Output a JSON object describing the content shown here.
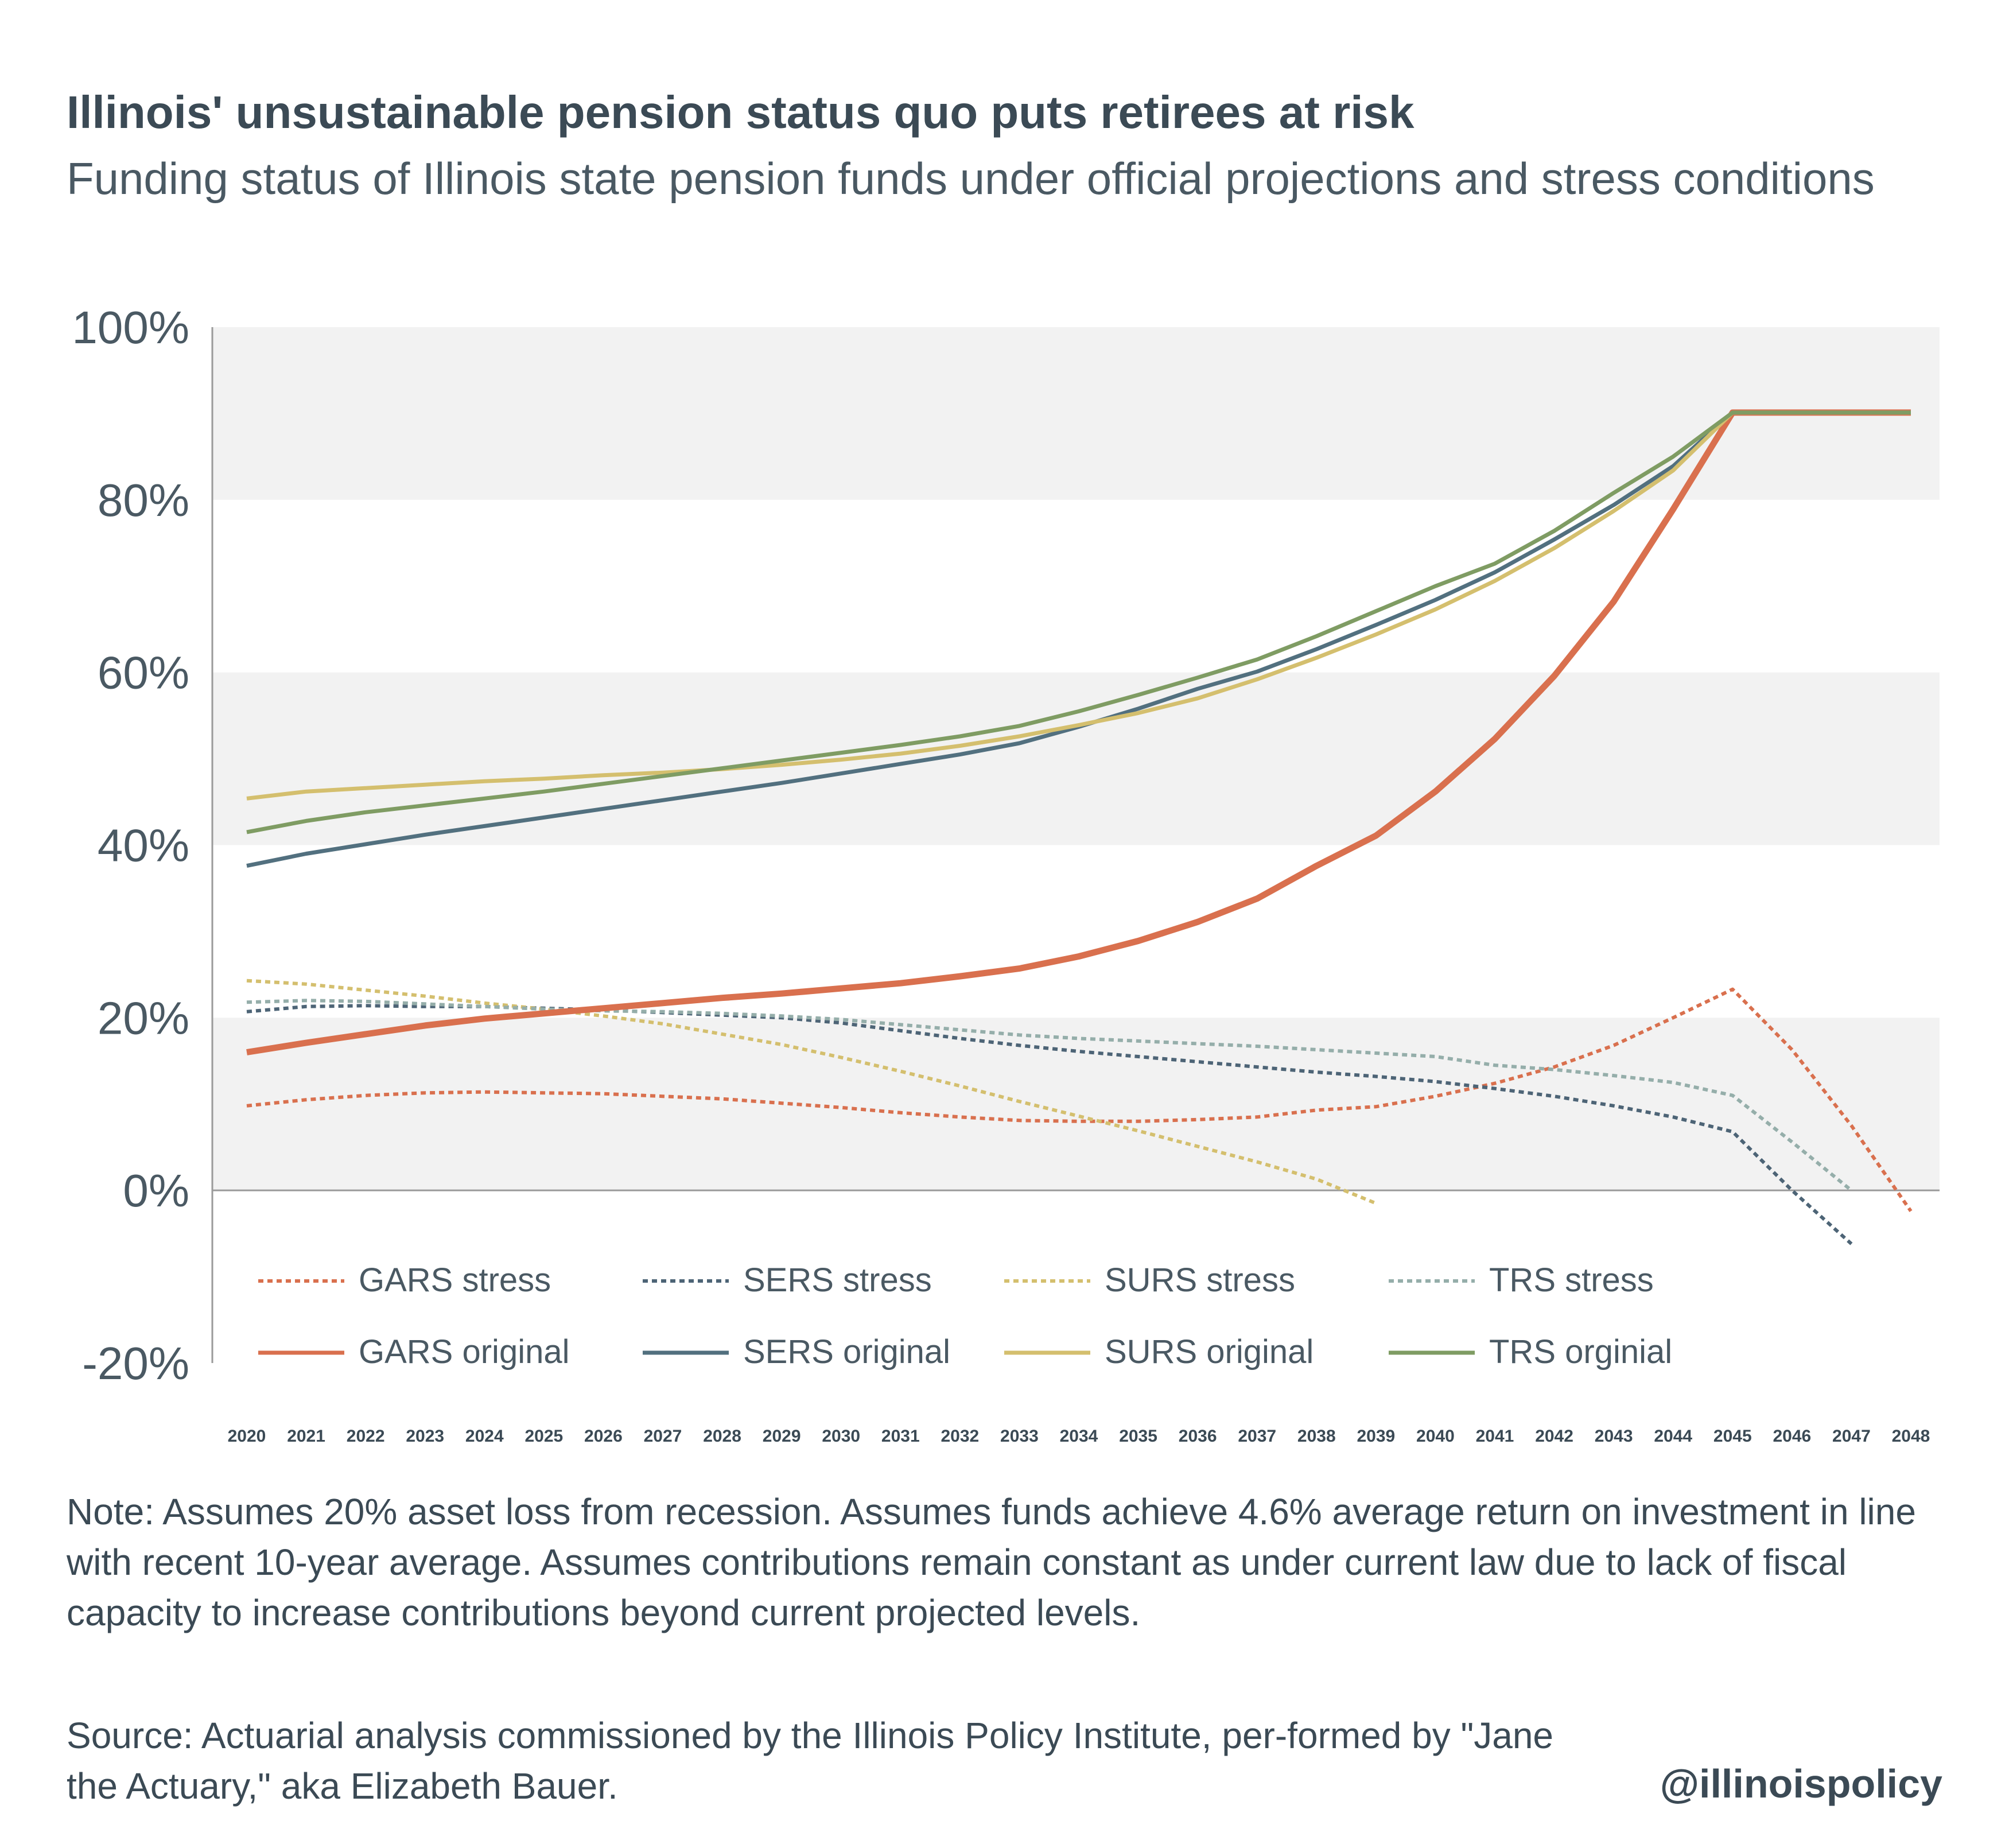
{
  "title": "Illinois' unsustainable pension status quo puts retirees at risk",
  "subtitle": "Funding status of Illinois state pension funds under official projections and stress conditions",
  "note": "Note: Assumes 20% asset loss from recession. Assumes funds achieve 4.6% average return on investment in line with recent 10-year average. Assumes contributions remain constant as under current law due to lack of fiscal capacity to increase contributions beyond current projected levels.",
  "source": "Source:  Actuarial analysis commissioned by the Illinois Policy Institute, per-formed by \"Jane the Actuary,\" aka Elizabeth Bauer.",
  "handle": "@illinoispolicy",
  "chart_data": {
    "type": "line",
    "ylim": [
      -20,
      100
    ],
    "yticks": [
      "100%",
      "80%",
      "60%",
      "40%",
      "20%",
      "0%",
      "-20%"
    ],
    "ytick_values": [
      100,
      80,
      60,
      40,
      20,
      0,
      -20
    ],
    "grid": "alternating horizontal bands",
    "legend_position": "bottom",
    "x": [
      "2020",
      "2021",
      "2022",
      "2023",
      "2024",
      "2025",
      "2026",
      "2027",
      "2028",
      "2029",
      "2030",
      "2031",
      "2032",
      "2033",
      "2034",
      "2035",
      "2036",
      "2037",
      "2038",
      "2039",
      "2040",
      "2041",
      "2042",
      "2043",
      "2044",
      "2045",
      "2046",
      "2047",
      "2048"
    ],
    "series": [
      {
        "name": "GARS stress",
        "style": "dashed",
        "color": "#d9704e",
        "values": [
          9.8,
          10.5,
          11.0,
          11.3,
          11.4,
          11.3,
          11.2,
          10.9,
          10.6,
          10.1,
          9.6,
          9.0,
          8.5,
          8.1,
          8.0,
          8.0,
          8.2,
          8.5,
          9.3,
          9.7,
          10.9,
          12.4,
          14.3,
          16.8,
          20.0,
          23.3,
          16.3,
          7.5,
          -2.4
        ]
      },
      {
        "name": "SERS stress",
        "style": "dashed",
        "color": "#4d6476",
        "values": [
          20.7,
          21.3,
          21.4,
          21.3,
          21.3,
          21.1,
          20.9,
          20.6,
          20.3,
          20.0,
          19.4,
          18.5,
          17.6,
          16.8,
          16.1,
          15.5,
          14.9,
          14.3,
          13.7,
          13.2,
          12.6,
          11.8,
          10.9,
          9.8,
          8.5,
          6.8,
          0.0,
          -6.2,
          null
        ]
      },
      {
        "name": "SURS stress",
        "style": "dashed",
        "color": "#d4bf6e",
        "values": [
          24.3,
          23.9,
          23.2,
          22.5,
          21.7,
          21.0,
          20.2,
          19.3,
          18.1,
          16.9,
          15.4,
          13.8,
          12.1,
          10.3,
          8.6,
          6.9,
          5.1,
          3.3,
          1.3,
          -1.5,
          null,
          null,
          null,
          null,
          null,
          null,
          null,
          null,
          null
        ]
      },
      {
        "name": "TRS stress",
        "style": "dashed",
        "color": "#95aeaa",
        "values": [
          21.8,
          22.0,
          21.9,
          21.6,
          21.3,
          21.0,
          20.8,
          20.7,
          20.5,
          20.2,
          19.8,
          19.2,
          18.6,
          18.0,
          17.6,
          17.3,
          17.0,
          16.7,
          16.3,
          15.9,
          15.5,
          14.5,
          14.0,
          13.3,
          12.5,
          11.0,
          5.6,
          0.0,
          null
        ]
      },
      {
        "name": "GARS original",
        "style": "solid",
        "color": "#d9704e",
        "values": [
          16.0,
          17.1,
          18.1,
          19.1,
          19.9,
          20.5,
          21.1,
          21.7,
          22.3,
          22.8,
          23.4,
          24.0,
          24.8,
          25.7,
          27.1,
          28.9,
          31.1,
          33.8,
          37.6,
          41.1,
          46.2,
          52.3,
          59.6,
          68.2,
          78.9,
          90.1,
          90.1,
          90.1,
          90.1
        ]
      },
      {
        "name": "SERS original",
        "style": "solid",
        "color": "#52707f",
        "values": [
          37.6,
          39.0,
          40.1,
          41.2,
          42.2,
          43.2,
          44.2,
          45.2,
          46.2,
          47.2,
          48.3,
          49.4,
          50.5,
          51.8,
          53.7,
          55.8,
          58.1,
          60.1,
          62.7,
          65.5,
          68.4,
          71.6,
          75.4,
          79.4,
          83.9,
          90.1,
          90.1,
          90.1,
          90.1
        ]
      },
      {
        "name": "SURS original",
        "style": "solid",
        "color": "#d4bf6e",
        "values": [
          45.4,
          46.2,
          46.6,
          47.0,
          47.4,
          47.7,
          48.1,
          48.4,
          48.8,
          49.3,
          49.9,
          50.6,
          51.5,
          52.6,
          53.9,
          55.3,
          57.0,
          59.2,
          61.7,
          64.4,
          67.3,
          70.6,
          74.4,
          78.7,
          83.4,
          90.1,
          90.1,
          90.1,
          90.1
        ]
      },
      {
        "name": "TRS orginial",
        "style": "solid",
        "color": "#7f9c63",
        "values": [
          41.5,
          42.8,
          43.8,
          44.6,
          45.4,
          46.2,
          47.1,
          48.0,
          48.9,
          49.8,
          50.7,
          51.6,
          52.6,
          53.8,
          55.5,
          57.4,
          59.4,
          61.5,
          64.2,
          67.1,
          70.0,
          72.6,
          76.4,
          80.8,
          85.0,
          90.1,
          90.1,
          90.1,
          90.1
        ]
      }
    ]
  }
}
